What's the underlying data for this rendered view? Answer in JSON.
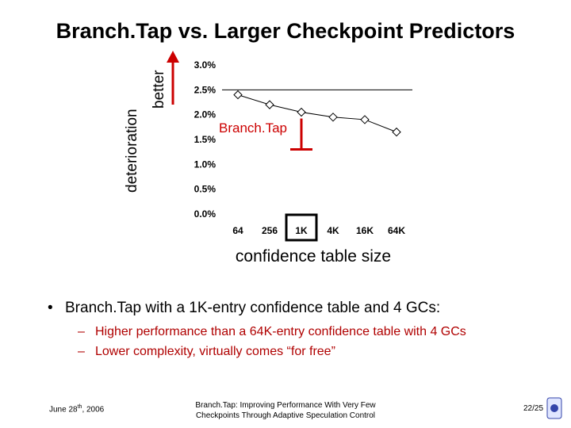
{
  "slide": {
    "title": "Branch.Tap vs. Larger Checkpoint Predictors",
    "deterioration_label": "deterioration",
    "better_label": "better",
    "annotation": "Branch.Tap",
    "bullet": "Branch.Tap with a 1K-entry confidence table and 4 GCs:",
    "sub_bullets": [
      "Higher performance than a 64K-entry confidence table with 4 GCs",
      "Lower complexity, virtually comes “for free”"
    ],
    "footer_date_main": "June 28",
    "footer_date_sup": "th",
    "footer_date_year": ", 2006",
    "footer_title_line1": "Branch.Tap: Improving Performance With Very Few",
    "footer_title_line2": "Checkpoints Through Adaptive Speculation Control",
    "page_number": "22/25",
    "colors": {
      "accent_red": "#cc0000",
      "line": "#000000"
    }
  },
  "chart_data": {
    "type": "line",
    "categories": [
      "64",
      "256",
      "1K",
      "4K",
      "16K",
      "64K"
    ],
    "series": [
      {
        "values": [
          2.4,
          2.2,
          2.05,
          1.95,
          1.9,
          1.65
        ]
      }
    ],
    "reference_line": 2.5,
    "branchtap_value": 1.3,
    "highlighted_category": "1K",
    "xlabel": "confidence table size",
    "ylabel": "",
    "ylim": [
      0,
      3
    ],
    "yticks": [
      0,
      0.5,
      1.0,
      1.5,
      2.0,
      2.5,
      3.0
    ],
    "ytick_labels": [
      "0.0%",
      "0.5%",
      "1.0%",
      "1.5%",
      "2.0%",
      "2.5%",
      "3.0%"
    ]
  }
}
